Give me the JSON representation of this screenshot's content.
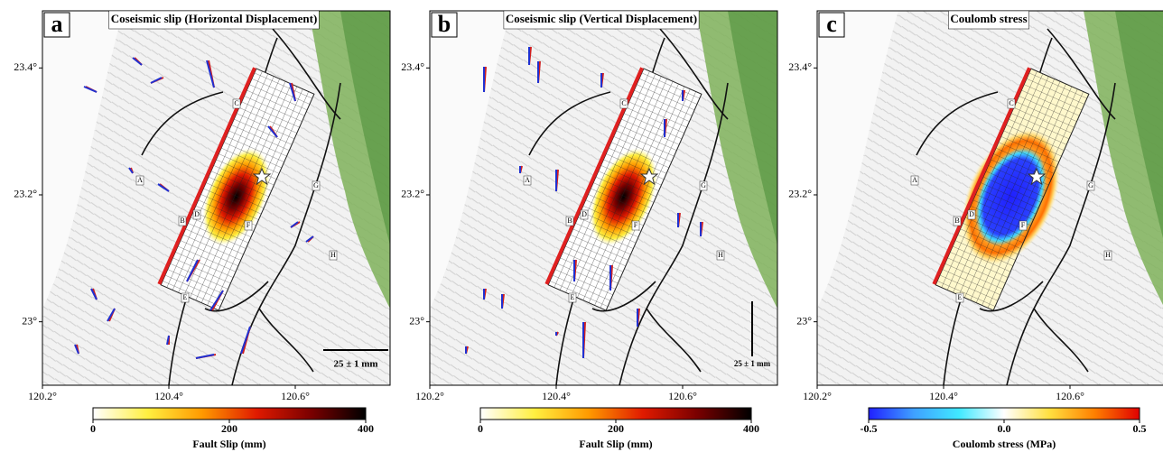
{
  "panels": [
    {
      "letter": "a",
      "title": "Coseismic slip (Horizontal Displacement)",
      "xlim": [
        120.2,
        120.75
      ],
      "ylim": [
        22.9,
        23.49
      ],
      "xticks": [
        {
          "value": 120.2,
          "label": "120.2°"
        },
        {
          "value": 120.4,
          "label": "120.4°"
        },
        {
          "value": 120.6,
          "label": "120.6°"
        }
      ],
      "yticks": [
        {
          "value": 23,
          "label": "23°"
        },
        {
          "value": 23.2,
          "label": "23.2°"
        },
        {
          "value": 23.4,
          "label": "23.4°"
        }
      ],
      "fault_labels": [
        "A",
        "B",
        "C",
        "D",
        "E",
        "F",
        "G",
        "H"
      ],
      "scale_label": "25 ± 1 mm",
      "colorbar": {
        "label": "Fault Slip (mm)",
        "lim": [
          0,
          400
        ],
        "ticks": [
          0,
          200,
          400
        ],
        "colors": [
          "#ffffff",
          "#ffef40",
          "#ff9a00",
          "#e01a00",
          "#7a0000",
          "#000000"
        ]
      }
    },
    {
      "letter": "b",
      "title": "Coseismic slip (Vertical Displacement)",
      "xlim": [
        120.2,
        120.75
      ],
      "ylim": [
        22.9,
        23.49
      ],
      "xticks": [
        {
          "value": 120.2,
          "label": "120.2°"
        },
        {
          "value": 120.4,
          "label": "120.4°"
        },
        {
          "value": 120.6,
          "label": "120.6°"
        }
      ],
      "yticks": [
        {
          "value": 23,
          "label": "23°"
        },
        {
          "value": 23.2,
          "label": "23.2°"
        },
        {
          "value": 23.4,
          "label": "23.4°"
        }
      ],
      "fault_labels": [
        "A",
        "B",
        "C",
        "D",
        "E",
        "F",
        "G",
        "H"
      ],
      "scale_label": "25 ± 1 mm",
      "colorbar": {
        "label": "Fault Slip (mm)",
        "lim": [
          0,
          400
        ],
        "ticks": [
          0,
          200,
          400
        ],
        "colors": [
          "#ffffff",
          "#ffef40",
          "#ff9a00",
          "#e01a00",
          "#7a0000",
          "#000000"
        ]
      }
    },
    {
      "letter": "c",
      "title": "Coulomb stress",
      "xlim": [
        120.2,
        120.75
      ],
      "ylim": [
        22.9,
        23.49
      ],
      "xticks": [
        {
          "value": 120.2,
          "label": "120.2°"
        },
        {
          "value": 120.4,
          "label": "120.4°"
        },
        {
          "value": 120.6,
          "label": "120.6°"
        }
      ],
      "yticks": [
        {
          "value": 23,
          "label": "23°"
        },
        {
          "value": 23.2,
          "label": "23.2°"
        },
        {
          "value": 23.4,
          "label": "23.4°"
        }
      ],
      "fault_labels": [
        "A",
        "B",
        "C",
        "D",
        "E",
        "F",
        "G",
        "H"
      ],
      "colorbar": {
        "label": "Coulomb stress (MPa)",
        "lim": [
          -0.5,
          0.5
        ],
        "ticks": [
          -0.5,
          {
            "value": 0,
            "label": "0.0"
          },
          0.5
        ],
        "colors": [
          "#2020ff",
          "#3fa0ff",
          "#40e8ff",
          "#ffffff",
          "#ffe040",
          "#ff8000",
          "#e00000"
        ]
      }
    }
  ]
}
